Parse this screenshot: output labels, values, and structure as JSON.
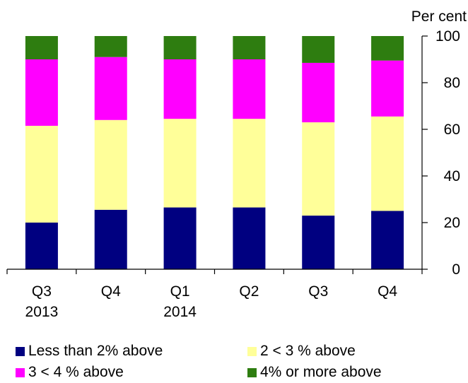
{
  "chart_data": {
    "type": "bar",
    "stacked": true,
    "unit_label": "Per cent",
    "categories": [
      [
        "Q3",
        "2013"
      ],
      [
        "Q4",
        ""
      ],
      [
        "Q1",
        "2014"
      ],
      [
        "Q2",
        ""
      ],
      [
        "Q3",
        ""
      ],
      [
        "Q4",
        ""
      ]
    ],
    "ylim": [
      0,
      100
    ],
    "yticks": [
      "0",
      "20",
      "40",
      "60",
      "80",
      "100"
    ],
    "y_axis_side": "right",
    "grid": false,
    "legend_position": "bottom",
    "series": [
      {
        "name": "Less than 2% above",
        "color": "#000080",
        "values": [
          20,
          25.5,
          26.5,
          26.5,
          23,
          25
        ]
      },
      {
        "name": "2 < 3 % above",
        "color": "#ffff99",
        "values": [
          41.5,
          38.5,
          38,
          38,
          40,
          40.5
        ]
      },
      {
        "name": "3 < 4 % above",
        "color": "#ff00ff",
        "values": [
          28.5,
          27,
          25.5,
          25.5,
          25.5,
          24
        ]
      },
      {
        "name": "4% or more above",
        "color": "#2e7d10",
        "values": [
          10,
          9,
          10,
          10,
          11.5,
          10.5
        ]
      }
    ]
  }
}
